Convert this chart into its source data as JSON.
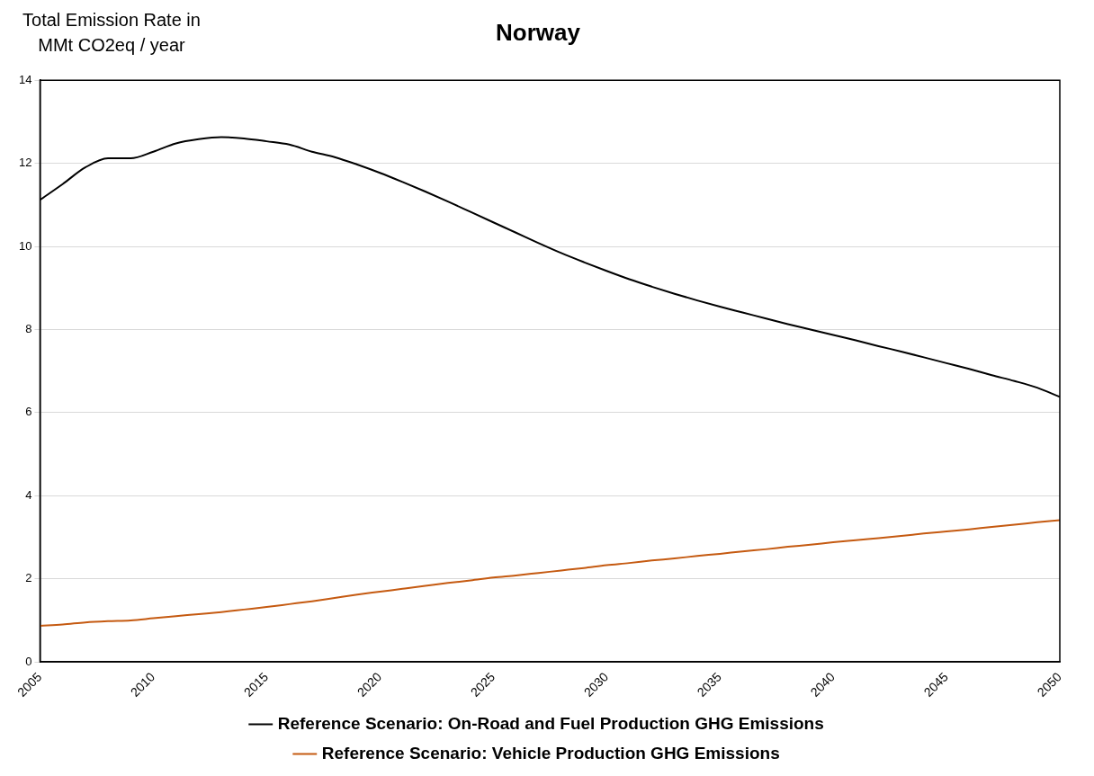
{
  "chart_data": {
    "type": "line",
    "title": "Norway",
    "ylabel": "Total Emission Rate in MMt CO2eq / year",
    "x": [
      2005,
      2006,
      2007,
      2008,
      2009,
      2010,
      2011,
      2012,
      2013,
      2014,
      2015,
      2016,
      2017,
      2018,
      2019,
      2020,
      2021,
      2022,
      2023,
      2024,
      2025,
      2026,
      2027,
      2028,
      2029,
      2030,
      2031,
      2032,
      2033,
      2034,
      2035,
      2036,
      2037,
      2038,
      2039,
      2040,
      2041,
      2042,
      2043,
      2044,
      2045,
      2046,
      2047,
      2048,
      2049,
      2050
    ],
    "series": [
      {
        "name": "Reference Scenario: On-Road and Fuel Production GHG Emissions",
        "color": "#000000",
        "values": [
          11.12,
          11.5,
          11.9,
          12.12,
          12.12,
          12.28,
          12.48,
          12.58,
          12.63,
          12.6,
          12.53,
          12.45,
          12.28,
          12.15,
          11.97,
          11.77,
          11.55,
          11.32,
          11.08,
          10.83,
          10.58,
          10.33,
          10.08,
          9.84,
          9.62,
          9.41,
          9.21,
          9.03,
          8.86,
          8.7,
          8.55,
          8.41,
          8.27,
          8.13,
          8.0,
          7.87,
          7.74,
          7.6,
          7.47,
          7.33,
          7.19,
          7.05,
          6.9,
          6.76,
          6.6,
          6.38
        ]
      },
      {
        "name": "Reference Scenario: Vehicle Production GHG Emissions",
        "color": "#c55a11",
        "values": [
          0.87,
          0.9,
          0.95,
          0.98,
          1.0,
          1.05,
          1.1,
          1.15,
          1.2,
          1.26,
          1.32,
          1.39,
          1.46,
          1.54,
          1.62,
          1.69,
          1.76,
          1.83,
          1.9,
          1.96,
          2.03,
          2.08,
          2.14,
          2.2,
          2.26,
          2.33,
          2.38,
          2.44,
          2.49,
          2.55,
          2.6,
          2.66,
          2.71,
          2.77,
          2.82,
          2.88,
          2.93,
          2.98,
          3.03,
          3.09,
          3.14,
          3.19,
          3.25,
          3.3,
          3.36,
          3.41
        ]
      }
    ],
    "xlim": [
      2005,
      2050
    ],
    "xticks": [
      2005,
      2010,
      2015,
      2020,
      2025,
      2030,
      2035,
      2040,
      2045,
      2050
    ],
    "ylim": [
      0,
      14
    ],
    "yticks": [
      0,
      2,
      4,
      6,
      8,
      10,
      12,
      14
    ],
    "grid": "y",
    "legend": "bottom",
    "marker": "none",
    "line_style": "solid"
  }
}
